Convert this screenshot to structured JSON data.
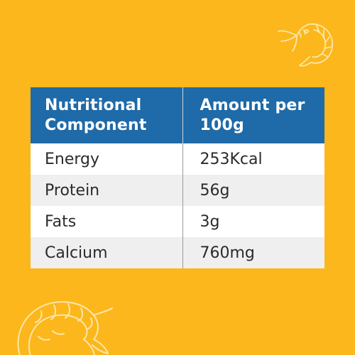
{
  "background_color": "#fbb71c",
  "header_color": "#1f6aa8",
  "decorations": [
    "shrimp-icon",
    "shrimp-icon"
  ],
  "table": {
    "headers": {
      "component": "Nutritional Component",
      "amount": "Amount per 100g"
    },
    "rows": [
      {
        "component": "Energy",
        "amount": "253Kcal"
      },
      {
        "component": "Protein",
        "amount": "56g"
      },
      {
        "component": "Fats",
        "amount": "3g"
      },
      {
        "component": "Calcium",
        "amount": "760mg"
      }
    ]
  }
}
